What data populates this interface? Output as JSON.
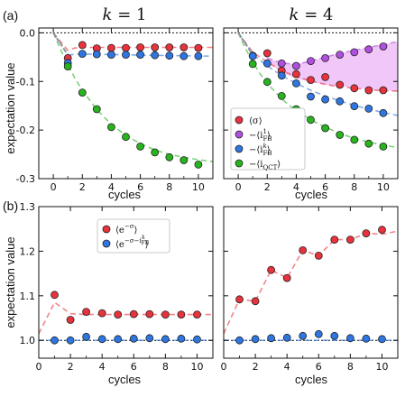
{
  "figure": {
    "panel_label_a": "(a)",
    "panel_label_b": "(b)",
    "title_k1": "k = 1",
    "title_k4": "k = 4",
    "xlabel": "cycles",
    "ylabel": "expectation value"
  },
  "chart_data": [
    {
      "id": "a1",
      "type": "scatter",
      "xlim": [
        -1,
        11
      ],
      "ylim": [
        -0.3,
        0.01
      ],
      "xticks": [
        0,
        2,
        4,
        6,
        8,
        10
      ],
      "yticks": [
        0.0,
        -0.1,
        -0.2,
        -0.3
      ],
      "ytick_labels": [
        "0.0",
        "-0.1",
        "-0.2",
        "-0.3"
      ],
      "reference_line_y": 0.0,
      "series": [
        {
          "color": "#e8323c",
          "x": [
            1,
            2,
            3,
            4,
            5,
            6,
            7,
            8,
            9,
            10
          ],
          "y": [
            -0.052,
            -0.025,
            -0.032,
            -0.031,
            -0.031,
            -0.03,
            -0.03,
            -0.03,
            -0.03,
            -0.031
          ],
          "fit_x": [
            0,
            1,
            1.5,
            2,
            3,
            4,
            5,
            6,
            7,
            8,
            9,
            10,
            11
          ],
          "fit_y": [
            0,
            -0.036,
            -0.031,
            -0.03,
            -0.03,
            -0.03,
            -0.03,
            -0.03,
            -0.03,
            -0.03,
            -0.03,
            -0.03,
            -0.03
          ]
        },
        {
          "color": "#2f76e0",
          "x": [
            1,
            2,
            3,
            4,
            5,
            6,
            7,
            8,
            9,
            10
          ],
          "y": [
            -0.062,
            -0.043,
            -0.044,
            -0.045,
            -0.045,
            -0.045,
            -0.046,
            -0.047,
            -0.048,
            -0.048
          ],
          "fit_x": [
            0,
            1,
            1.5,
            2,
            3,
            4,
            5,
            6,
            7,
            8,
            9,
            10,
            11
          ],
          "fit_y": [
            0,
            -0.046,
            -0.044,
            -0.044,
            -0.044,
            -0.045,
            -0.045,
            -0.046,
            -0.046,
            -0.047,
            -0.047,
            -0.048,
            -0.048
          ]
        },
        {
          "color": "#28b41e",
          "x": [
            1,
            2,
            3,
            4,
            5,
            6,
            7,
            8,
            9,
            10
          ],
          "y": [
            -0.069,
            -0.123,
            -0.157,
            -0.194,
            -0.214,
            -0.234,
            -0.246,
            -0.256,
            -0.262,
            -0.271
          ],
          "fit_x": [
            0,
            0.5,
            1,
            1.5,
            2,
            3,
            4,
            5,
            6,
            7,
            8,
            9,
            10,
            11
          ],
          "fit_y": [
            0,
            -0.034,
            -0.066,
            -0.094,
            -0.118,
            -0.158,
            -0.188,
            -0.211,
            -0.228,
            -0.241,
            -0.25,
            -0.256,
            -0.261,
            -0.265
          ]
        }
      ]
    },
    {
      "id": "a2",
      "type": "scatter",
      "xlim": [
        -1,
        11
      ],
      "ylim": [
        -0.3,
        0.01
      ],
      "xticks": [
        0,
        2,
        4,
        6,
        8,
        10
      ],
      "yticks": [
        0.0,
        -0.1,
        -0.2,
        -0.3
      ],
      "reference_line_y": 0.0,
      "shaded_band": {
        "color": "#e080f0",
        "x": [
          1.8,
          2,
          3,
          4,
          5,
          6,
          7,
          8,
          9,
          10,
          11
        ],
        "upper": [
          -0.04,
          -0.052,
          -0.062,
          -0.065,
          -0.058,
          -0.05,
          -0.042,
          -0.036,
          -0.03,
          -0.024,
          -0.018
        ],
        "lower": [
          -0.04,
          -0.058,
          -0.082,
          -0.094,
          -0.101,
          -0.107,
          -0.11,
          -0.113,
          -0.116,
          -0.118,
          -0.12
        ]
      },
      "series": [
        {
          "color": "#e8323c",
          "x": [
            1,
            2,
            3,
            4,
            5,
            6,
            7,
            8,
            9,
            10
          ],
          "y": [
            -0.047,
            -0.042,
            -0.078,
            -0.085,
            -0.097,
            -0.091,
            -0.107,
            -0.114,
            -0.118,
            -0.118
          ],
          "fit_x": [
            0,
            1,
            2,
            3,
            4,
            5,
            6,
            7,
            8,
            9,
            10,
            11
          ],
          "fit_y": [
            0,
            -0.04,
            -0.06,
            -0.078,
            -0.09,
            -0.099,
            -0.106,
            -0.111,
            -0.114,
            -0.117,
            -0.119,
            -0.12
          ]
        },
        {
          "color": "#b050e0",
          "x": [
            3,
            4,
            5,
            6,
            7,
            8,
            9,
            10
          ],
          "y": [
            -0.063,
            -0.068,
            -0.058,
            -0.052,
            -0.045,
            -0.04,
            -0.034,
            -0.028
          ],
          "fit_x": [
            2,
            3,
            4,
            5,
            6,
            7,
            8,
            9,
            10,
            11
          ],
          "fit_y": [
            -0.052,
            -0.062,
            -0.065,
            -0.058,
            -0.05,
            -0.042,
            -0.036,
            -0.03,
            -0.024,
            -0.018
          ]
        },
        {
          "color": "#2f76e0",
          "x": [
            1,
            2,
            3,
            4,
            5,
            6,
            7,
            8,
            9,
            10
          ],
          "y": [
            -0.048,
            -0.063,
            -0.088,
            -0.104,
            -0.131,
            -0.137,
            -0.141,
            -0.151,
            -0.156,
            -0.165
          ],
          "fit_x": [
            0,
            1,
            2,
            3,
            4,
            5,
            6,
            7,
            8,
            9,
            10,
            11
          ],
          "fit_y": [
            0,
            -0.044,
            -0.068,
            -0.088,
            -0.104,
            -0.118,
            -0.13,
            -0.14,
            -0.149,
            -0.157,
            -0.164,
            -0.17
          ]
        },
        {
          "color": "#28b41e",
          "x": [
            1,
            2,
            3,
            4,
            5,
            6,
            7,
            8,
            9,
            10
          ],
          "y": [
            -0.064,
            -0.101,
            -0.13,
            -0.157,
            -0.179,
            -0.196,
            -0.21,
            -0.22,
            -0.228,
            -0.234
          ],
          "fit_x": [
            0,
            0.5,
            1,
            1.5,
            2,
            3,
            4,
            5,
            6,
            7,
            8,
            9,
            10,
            11
          ],
          "fit_y": [
            0,
            -0.032,
            -0.06,
            -0.084,
            -0.104,
            -0.136,
            -0.16,
            -0.179,
            -0.194,
            -0.207,
            -0.217,
            -0.225,
            -0.231,
            -0.236
          ]
        }
      ],
      "legend": {
        "entries": [
          {
            "color": "#e8323c",
            "label": "⟨σ⟩"
          },
          {
            "color": "#b050e0",
            "label": "−⟨i"
          },
          {
            "color": "#2f76e0",
            "label": "−⟨i"
          },
          {
            "color": "#28b41e",
            "label": "−⟨i"
          }
        ]
      }
    },
    {
      "id": "b1",
      "type": "scatter",
      "xlim": [
        0,
        11
      ],
      "ylim": [
        0.96,
        1.3
      ],
      "xticks": [
        0,
        2,
        4,
        6,
        8,
        10
      ],
      "yticks": [
        1.0,
        1.1,
        1.2,
        1.3
      ],
      "ytick_labels": [
        "1.0",
        "1.1",
        "1.2",
        "1.3"
      ],
      "reference_line_y": 1.0,
      "series": [
        {
          "color": "#e8323c",
          "x": [
            1,
            2,
            3,
            4,
            5,
            6,
            7,
            8,
            9,
            10
          ],
          "y": [
            1.102,
            1.046,
            1.064,
            1.061,
            1.058,
            1.059,
            1.059,
            1.058,
            1.058,
            1.058
          ],
          "fit_x": [
            0,
            1,
            2,
            3,
            4,
            5,
            6,
            7,
            8,
            9,
            10,
            11
          ],
          "fit_y": [
            1.015,
            1.085,
            1.06,
            1.058,
            1.058,
            1.058,
            1.058,
            1.058,
            1.058,
            1.058,
            1.058,
            1.058
          ]
        },
        {
          "color": "#2f76e0",
          "x": [
            1,
            2,
            3,
            4,
            5,
            6,
            7,
            8,
            9,
            10
          ],
          "y": [
            1.0,
            1.0,
            1.008,
            1.003,
            1.003,
            1.004,
            1.005,
            1.003,
            1.004,
            1.002
          ],
          "fit_x": [
            0,
            11
          ],
          "fit_y": [
            1.0,
            1.0
          ]
        }
      ],
      "legend": {
        "entries": [
          {
            "color": "#e8323c",
            "label": "⟨e"
          },
          {
            "color": "#2f76e0",
            "label": "⟨e"
          }
        ]
      }
    },
    {
      "id": "b2",
      "type": "scatter",
      "xlim": [
        0,
        11
      ],
      "ylim": [
        0.96,
        1.3
      ],
      "xticks": [
        0,
        2,
        4,
        6,
        8,
        10
      ],
      "yticks": [
        1.0,
        1.1,
        1.2,
        1.3
      ],
      "reference_line_y": 1.0,
      "series": [
        {
          "color": "#e8323c",
          "x": [
            1,
            2,
            3,
            4,
            5,
            6,
            7,
            8,
            9,
            10
          ],
          "y": [
            1.092,
            1.088,
            1.158,
            1.14,
            1.202,
            1.19,
            1.226,
            1.226,
            1.24,
            1.248
          ],
          "fit_x": [
            0,
            1,
            2,
            3,
            4,
            5,
            6,
            7,
            8,
            9,
            10,
            11
          ],
          "fit_y": [
            1.015,
            1.092,
            1.088,
            1.158,
            1.14,
            1.202,
            1.19,
            1.226,
            1.226,
            1.24,
            1.238,
            1.245
          ]
        },
        {
          "color": "#2f76e0",
          "x": [
            1,
            2,
            3,
            4,
            5,
            6,
            7,
            8,
            9,
            10
          ],
          "y": [
            1.0,
            1.003,
            1.005,
            1.006,
            1.01,
            1.014,
            1.01,
            1.005,
            1.004,
            1.003
          ],
          "fit_x": [
            0,
            11
          ],
          "fit_y": [
            1.0,
            1.0
          ]
        }
      ]
    }
  ]
}
